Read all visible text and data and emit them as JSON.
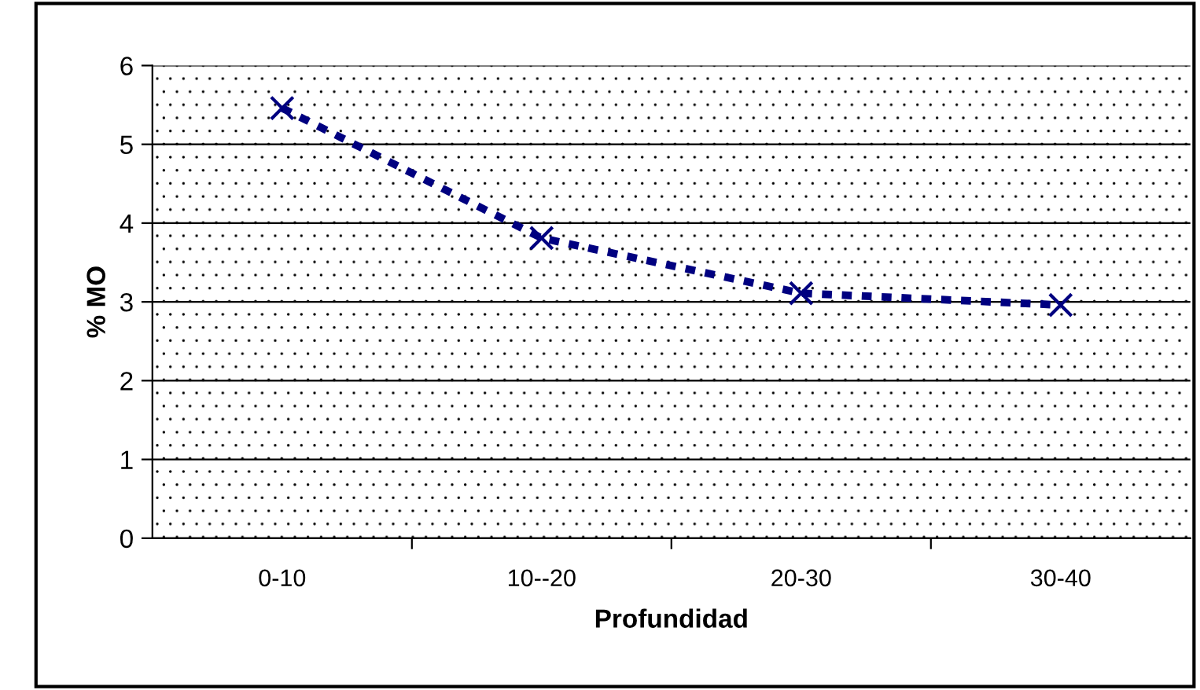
{
  "chart_data": {
    "type": "line",
    "xlabel": "Profundidad",
    "ylabel": "% MO",
    "categories": [
      "0-10",
      "10--20",
      "20-30",
      "30-40"
    ],
    "series": [
      {
        "color": "#000080",
        "values": [
          5.46,
          3.81,
          3.11,
          2.96
        ]
      }
    ],
    "ylim": [
      0,
      6
    ],
    "yticks": [
      0,
      1,
      2,
      3,
      4,
      5,
      6
    ],
    "grid": "y",
    "marker": "cross",
    "line_style": "dashed",
    "legend": false
  }
}
